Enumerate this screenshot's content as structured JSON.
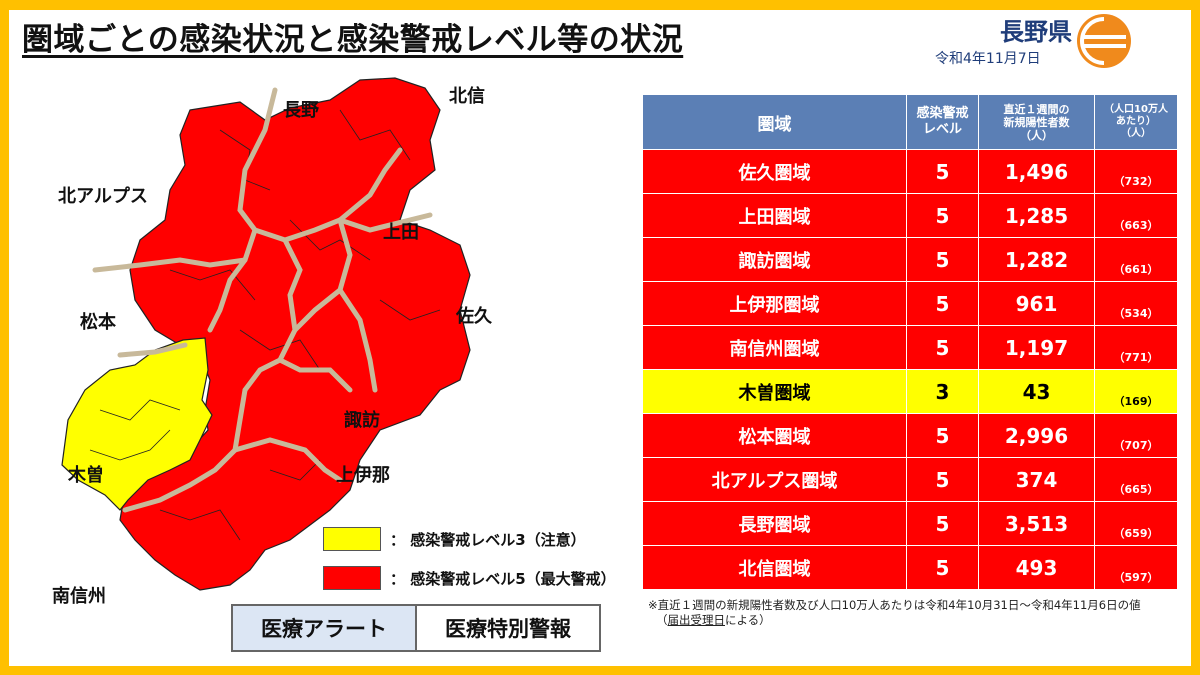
{
  "header": {
    "title": "圏域ごとの感染状況と感染警戒レベル等の状況",
    "prefecture": "長野県",
    "date": "令和4年11月7日"
  },
  "colors": {
    "level5": "#ff0000",
    "level3": "#ffff00",
    "border": "#ffc000",
    "header_bg": "#5b7fb5"
  },
  "map": {
    "labels": {
      "nagano": "長野",
      "hokushin": "北信",
      "kita_alps": "北アルプス",
      "ueda": "上田",
      "matsumoto": "松本",
      "saku": "佐久",
      "suwa": "諏訪",
      "kiso": "木曽",
      "kamiina": "上伊那",
      "minamishinshu": "南信州"
    },
    "legend": [
      {
        "text": "：  感染警戒レベル3（注意）",
        "color": "#ffff00"
      },
      {
        "text": "：  感染警戒レベル5（最大警戒）",
        "color": "#ff0000"
      }
    ]
  },
  "alerts": {
    "left": "医療アラート",
    "right": "医療特別警報"
  },
  "table": {
    "headers": {
      "area": "圏域",
      "level_1": "感染警戒",
      "level_2": "レベル",
      "cases_1": "直近１週間の",
      "cases_2": "新規陽性者数",
      "cases_3": "（人）",
      "per_1": "（人口10万人",
      "per_2": "あたり）",
      "per_3": "（人）"
    },
    "rows": [
      {
        "area": "佐久圏域",
        "level": "5",
        "cases": "1,496",
        "per100k": "（732）"
      },
      {
        "area": "上田圏域",
        "level": "5",
        "cases": "1,285",
        "per100k": "（663）"
      },
      {
        "area": "諏訪圏域",
        "level": "5",
        "cases": "1,282",
        "per100k": "（661）"
      },
      {
        "area": "上伊那圏域",
        "level": "5",
        "cases": "961",
        "per100k": "（534）"
      },
      {
        "area": "南信州圏域",
        "level": "5",
        "cases": "1,197",
        "per100k": "（771）"
      },
      {
        "area": "木曽圏域",
        "level": "3",
        "cases": "43",
        "per100k": "（169）"
      },
      {
        "area": "松本圏域",
        "level": "5",
        "cases": "2,996",
        "per100k": "（707）"
      },
      {
        "area": "北アルプス圏域",
        "level": "5",
        "cases": "374",
        "per100k": "（665）"
      },
      {
        "area": "長野圏域",
        "level": "5",
        "cases": "3,513",
        "per100k": "（659）"
      },
      {
        "area": "北信圏域",
        "level": "5",
        "cases": "493",
        "per100k": "（597）"
      }
    ]
  },
  "note": {
    "line1": "※直近１週間の新規陽性者数及び人口10万人あたりは令和4年10月31日～令和4年11月6日の値",
    "line2_pre": "（",
    "line2_ul": "届出受理日",
    "line2_post": "による）"
  }
}
